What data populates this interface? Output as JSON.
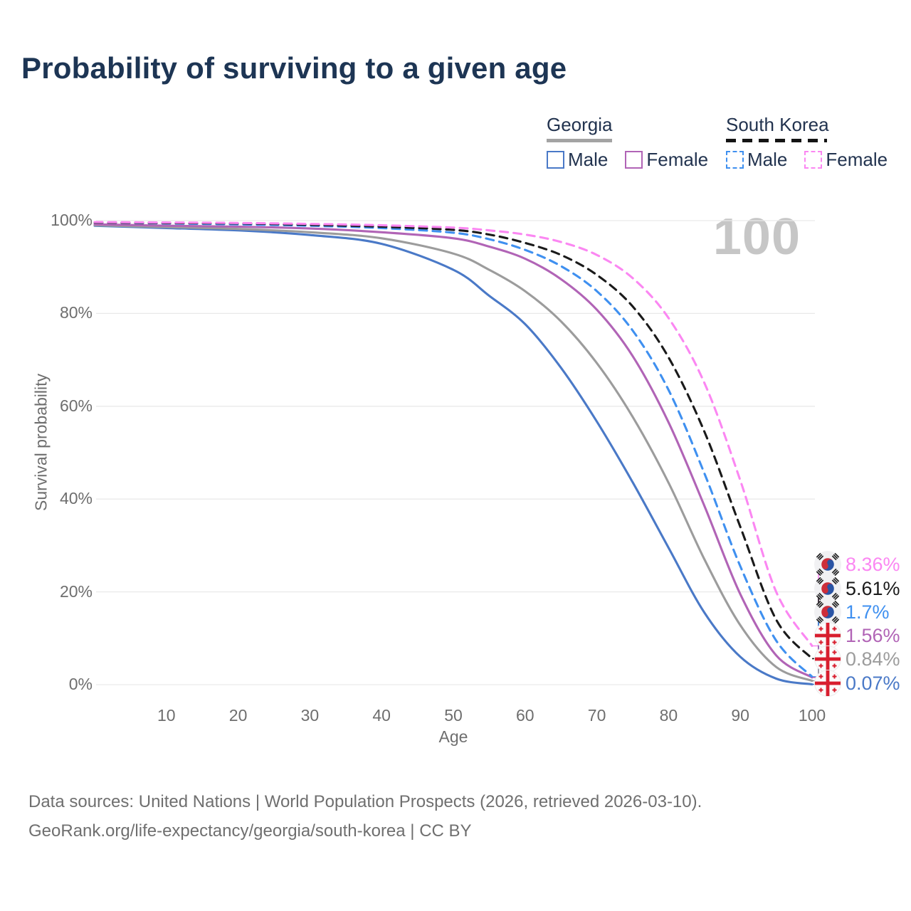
{
  "title": "Probability of surviving to a given age",
  "watermark": "100",
  "legend": {
    "groups": [
      {
        "label": "Georgia",
        "line_style": "solid",
        "underline_color": "#a3a3a3",
        "items": [
          {
            "label": "Male",
            "color": "#4a79c7",
            "dashed": false
          },
          {
            "label": "Female",
            "color": "#b164b6",
            "dashed": false
          }
        ]
      },
      {
        "label": "South Korea",
        "line_style": "dashed",
        "underline_color": "#141414",
        "items": [
          {
            "label": "Male",
            "color": "#3f90f0",
            "dashed": true
          },
          {
            "label": "Female",
            "color": "#fb87f2",
            "dashed": true
          }
        ]
      }
    ]
  },
  "chart_data": {
    "type": "line",
    "title": "Probability of surviving to a given age",
    "xlabel": "Age",
    "ylabel": "Survival probability",
    "xlim": [
      0,
      100
    ],
    "ylim": [
      0,
      100
    ],
    "grid": "horizontal-only",
    "legend_position": "top-right",
    "x_ticks": [
      10,
      20,
      30,
      40,
      50,
      60,
      70,
      80,
      90,
      100
    ],
    "y_ticks": [
      {
        "value": 0,
        "label": "0%"
      },
      {
        "value": 20,
        "label": "20%"
      },
      {
        "value": 40,
        "label": "40%"
      },
      {
        "value": 60,
        "label": "60%"
      },
      {
        "value": 80,
        "label": "80%"
      },
      {
        "value": 100,
        "label": "100%"
      }
    ],
    "x": [
      0,
      10,
      20,
      30,
      40,
      50,
      55,
      60,
      65,
      70,
      75,
      80,
      85,
      90,
      95,
      100
    ],
    "series": [
      {
        "name": "South Korea Female",
        "country": "South Korea",
        "sex": "Female",
        "color": "#fb87f2",
        "dashed": true,
        "end_label": "8.36%",
        "end_value": 8.36,
        "values": [
          99.7,
          99.6,
          99.5,
          99.3,
          99.0,
          98.5,
          97.9,
          97.0,
          95.4,
          92.6,
          87.6,
          79.0,
          65.0,
          44.0,
          20.0,
          8.36
        ]
      },
      {
        "name": "South Korea Both sexes",
        "country": "South Korea",
        "sex": "Both",
        "color": "#1a1a1a",
        "dashed": true,
        "end_label": "5.61%",
        "end_value": 5.61,
        "values": [
          99.6,
          99.5,
          99.4,
          99.1,
          98.7,
          98.0,
          97.0,
          95.2,
          92.6,
          88.3,
          81.5,
          70.5,
          54.5,
          34.0,
          14.0,
          5.61
        ]
      },
      {
        "name": "South Korea Male",
        "country": "South Korea",
        "sex": "Male",
        "color": "#3f90f0",
        "dashed": true,
        "end_label": "1.7%",
        "end_value": 1.7,
        "values": [
          99.6,
          99.4,
          99.2,
          98.9,
          98.4,
          97.4,
          96.0,
          93.7,
          90.2,
          84.8,
          76.3,
          63.5,
          45.5,
          25.5,
          9.5,
          1.7
        ]
      },
      {
        "name": "Georgia Female",
        "country": "Georgia",
        "sex": "Female",
        "color": "#b164b6",
        "dashed": false,
        "end_label": "1.56%",
        "end_value": 1.56,
        "values": [
          99.2,
          98.9,
          98.7,
          98.3,
          97.5,
          96.2,
          94.4,
          91.8,
          87.4,
          80.8,
          70.8,
          56.5,
          38.5,
          19.5,
          6.3,
          1.56
        ]
      },
      {
        "name": "Georgia Both sexes",
        "country": "Georgia",
        "sex": "Both",
        "color": "#9c9c9c",
        "dashed": false,
        "end_label": "0.84%",
        "end_value": 0.84,
        "values": [
          99.0,
          98.6,
          98.2,
          97.5,
          96.2,
          92.9,
          89.4,
          84.8,
          78.3,
          69.3,
          57.7,
          43.5,
          27.0,
          12.8,
          3.8,
          0.84
        ]
      },
      {
        "name": "Georgia Male",
        "country": "Georgia",
        "sex": "Male",
        "color": "#4a79c7",
        "dashed": false,
        "end_label": "0.07%",
        "end_value": 0.07,
        "values": [
          98.9,
          98.4,
          97.9,
          96.9,
          95.0,
          89.4,
          83.8,
          77.7,
          68.3,
          56.7,
          43.6,
          29.5,
          15.5,
          6.0,
          1.3,
          0.07
        ]
      }
    ]
  },
  "footer": {
    "line1": "Data sources: United Nations | World Population Prospects (2026, retrieved 2026-03-10).",
    "line2": "GeoRank.org/life-expectancy/georgia/south-korea | CC BY"
  }
}
